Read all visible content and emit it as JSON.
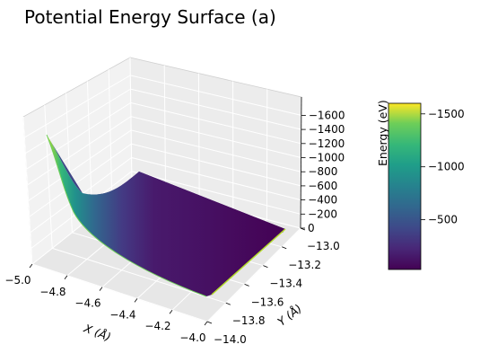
{
  "chart_data": {
    "type": "surface",
    "title": "Potential Energy Surface (a)",
    "xlabel": "X (Å)",
    "ylabel": "Y (Å)",
    "zlabel": "Energy (eV)",
    "xlim": [
      -5.0,
      -4.0
    ],
    "ylim": [
      -14.0,
      -13.0
    ],
    "zlim": [
      0,
      -1700
    ],
    "x_ticks": [
      "−5.0",
      "−4.8",
      "−4.6",
      "−4.4",
      "−4.2",
      "−4.0"
    ],
    "y_ticks": [
      "−14.0",
      "−13.8",
      "−13.6",
      "−13.4",
      "−13.2",
      "−13.0"
    ],
    "z_ticks": [
      "0",
      "−200",
      "−400",
      "−600",
      "−800",
      "−1000",
      "−1200",
      "−1400",
      "−1600"
    ],
    "colorbar": {
      "colormap": "viridis",
      "range": [
        -30,
        -1600
      ],
      "ticks": [
        "−500",
        "−1000",
        "−1500"
      ]
    },
    "surface_corners": [
      {
        "x": -5.0,
        "y": -13.0,
        "z": -1600
      },
      {
        "x": -5.0,
        "y": -14.0,
        "z": -850
      },
      {
        "x": -4.0,
        "y": -13.0,
        "z": -30
      },
      {
        "x": -4.0,
        "y": -14.0,
        "z": -30
      }
    ],
    "grid": true
  }
}
